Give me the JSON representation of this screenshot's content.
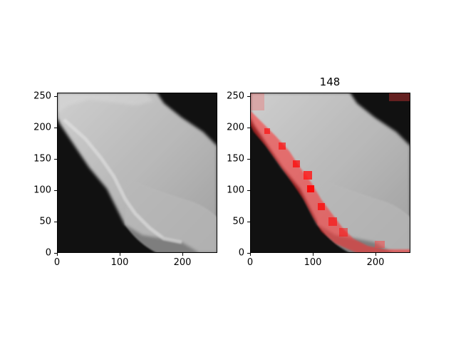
{
  "figure": {
    "panels": [
      {
        "id": "left",
        "title": "",
        "image_description": "grayscale satellite cloud image",
        "x_ticks": [
          "0",
          "100",
          "200"
        ],
        "y_ticks": [
          "0",
          "50",
          "100",
          "150",
          "200",
          "250"
        ]
      },
      {
        "id": "right",
        "title": "148",
        "image_description": "same cloud image with red overlay highlighting cloud edge",
        "overlay_color": "#ff0000",
        "x_ticks": [
          "0",
          "100",
          "200"
        ],
        "y_ticks": [
          "0",
          "50",
          "100",
          "150",
          "200",
          "250"
        ]
      }
    ]
  },
  "chart_data": [
    {
      "type": "heatmap",
      "title": "",
      "xlim": [
        0,
        256
      ],
      "ylim": [
        0,
        256
      ]
    },
    {
      "type": "heatmap",
      "title": "148",
      "xlim": [
        0,
        256
      ],
      "ylim": [
        0,
        256
      ]
    }
  ]
}
